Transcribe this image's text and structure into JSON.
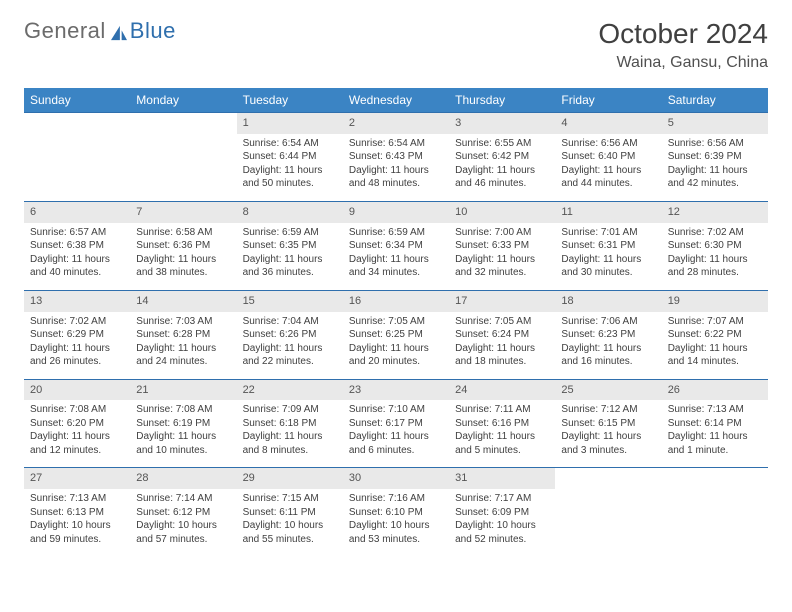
{
  "brand": {
    "part1": "General",
    "part2": "Blue"
  },
  "title": "October 2024",
  "location": "Waina, Gansu, China",
  "calendar": {
    "header_bg": "#3b84c4",
    "header_fg": "#ffffff",
    "rule_color": "#2f6fad",
    "daynum_bg": "#e9e9e9",
    "text_color": "#404040",
    "day_names": [
      "Sunday",
      "Monday",
      "Tuesday",
      "Wednesday",
      "Thursday",
      "Friday",
      "Saturday"
    ],
    "weeks": [
      [
        {
          "n": "",
          "sr": "",
          "ss": "",
          "dl": "",
          "empty": true
        },
        {
          "n": "",
          "sr": "",
          "ss": "",
          "dl": "",
          "empty": true
        },
        {
          "n": "1",
          "sr": "Sunrise: 6:54 AM",
          "ss": "Sunset: 6:44 PM",
          "dl": "Daylight: 11 hours and 50 minutes."
        },
        {
          "n": "2",
          "sr": "Sunrise: 6:54 AM",
          "ss": "Sunset: 6:43 PM",
          "dl": "Daylight: 11 hours and 48 minutes."
        },
        {
          "n": "3",
          "sr": "Sunrise: 6:55 AM",
          "ss": "Sunset: 6:42 PM",
          "dl": "Daylight: 11 hours and 46 minutes."
        },
        {
          "n": "4",
          "sr": "Sunrise: 6:56 AM",
          "ss": "Sunset: 6:40 PM",
          "dl": "Daylight: 11 hours and 44 minutes."
        },
        {
          "n": "5",
          "sr": "Sunrise: 6:56 AM",
          "ss": "Sunset: 6:39 PM",
          "dl": "Daylight: 11 hours and 42 minutes."
        }
      ],
      [
        {
          "n": "6",
          "sr": "Sunrise: 6:57 AM",
          "ss": "Sunset: 6:38 PM",
          "dl": "Daylight: 11 hours and 40 minutes."
        },
        {
          "n": "7",
          "sr": "Sunrise: 6:58 AM",
          "ss": "Sunset: 6:36 PM",
          "dl": "Daylight: 11 hours and 38 minutes."
        },
        {
          "n": "8",
          "sr": "Sunrise: 6:59 AM",
          "ss": "Sunset: 6:35 PM",
          "dl": "Daylight: 11 hours and 36 minutes."
        },
        {
          "n": "9",
          "sr": "Sunrise: 6:59 AM",
          "ss": "Sunset: 6:34 PM",
          "dl": "Daylight: 11 hours and 34 minutes."
        },
        {
          "n": "10",
          "sr": "Sunrise: 7:00 AM",
          "ss": "Sunset: 6:33 PM",
          "dl": "Daylight: 11 hours and 32 minutes."
        },
        {
          "n": "11",
          "sr": "Sunrise: 7:01 AM",
          "ss": "Sunset: 6:31 PM",
          "dl": "Daylight: 11 hours and 30 minutes."
        },
        {
          "n": "12",
          "sr": "Sunrise: 7:02 AM",
          "ss": "Sunset: 6:30 PM",
          "dl": "Daylight: 11 hours and 28 minutes."
        }
      ],
      [
        {
          "n": "13",
          "sr": "Sunrise: 7:02 AM",
          "ss": "Sunset: 6:29 PM",
          "dl": "Daylight: 11 hours and 26 minutes."
        },
        {
          "n": "14",
          "sr": "Sunrise: 7:03 AM",
          "ss": "Sunset: 6:28 PM",
          "dl": "Daylight: 11 hours and 24 minutes."
        },
        {
          "n": "15",
          "sr": "Sunrise: 7:04 AM",
          "ss": "Sunset: 6:26 PM",
          "dl": "Daylight: 11 hours and 22 minutes."
        },
        {
          "n": "16",
          "sr": "Sunrise: 7:05 AM",
          "ss": "Sunset: 6:25 PM",
          "dl": "Daylight: 11 hours and 20 minutes."
        },
        {
          "n": "17",
          "sr": "Sunrise: 7:05 AM",
          "ss": "Sunset: 6:24 PM",
          "dl": "Daylight: 11 hours and 18 minutes."
        },
        {
          "n": "18",
          "sr": "Sunrise: 7:06 AM",
          "ss": "Sunset: 6:23 PM",
          "dl": "Daylight: 11 hours and 16 minutes."
        },
        {
          "n": "19",
          "sr": "Sunrise: 7:07 AM",
          "ss": "Sunset: 6:22 PM",
          "dl": "Daylight: 11 hours and 14 minutes."
        }
      ],
      [
        {
          "n": "20",
          "sr": "Sunrise: 7:08 AM",
          "ss": "Sunset: 6:20 PM",
          "dl": "Daylight: 11 hours and 12 minutes."
        },
        {
          "n": "21",
          "sr": "Sunrise: 7:08 AM",
          "ss": "Sunset: 6:19 PM",
          "dl": "Daylight: 11 hours and 10 minutes."
        },
        {
          "n": "22",
          "sr": "Sunrise: 7:09 AM",
          "ss": "Sunset: 6:18 PM",
          "dl": "Daylight: 11 hours and 8 minutes."
        },
        {
          "n": "23",
          "sr": "Sunrise: 7:10 AM",
          "ss": "Sunset: 6:17 PM",
          "dl": "Daylight: 11 hours and 6 minutes."
        },
        {
          "n": "24",
          "sr": "Sunrise: 7:11 AM",
          "ss": "Sunset: 6:16 PM",
          "dl": "Daylight: 11 hours and 5 minutes."
        },
        {
          "n": "25",
          "sr": "Sunrise: 7:12 AM",
          "ss": "Sunset: 6:15 PM",
          "dl": "Daylight: 11 hours and 3 minutes."
        },
        {
          "n": "26",
          "sr": "Sunrise: 7:13 AM",
          "ss": "Sunset: 6:14 PM",
          "dl": "Daylight: 11 hours and 1 minute."
        }
      ],
      [
        {
          "n": "27",
          "sr": "Sunrise: 7:13 AM",
          "ss": "Sunset: 6:13 PM",
          "dl": "Daylight: 10 hours and 59 minutes."
        },
        {
          "n": "28",
          "sr": "Sunrise: 7:14 AM",
          "ss": "Sunset: 6:12 PM",
          "dl": "Daylight: 10 hours and 57 minutes."
        },
        {
          "n": "29",
          "sr": "Sunrise: 7:15 AM",
          "ss": "Sunset: 6:11 PM",
          "dl": "Daylight: 10 hours and 55 minutes."
        },
        {
          "n": "30",
          "sr": "Sunrise: 7:16 AM",
          "ss": "Sunset: 6:10 PM",
          "dl": "Daylight: 10 hours and 53 minutes."
        },
        {
          "n": "31",
          "sr": "Sunrise: 7:17 AM",
          "ss": "Sunset: 6:09 PM",
          "dl": "Daylight: 10 hours and 52 minutes."
        },
        {
          "n": "",
          "sr": "",
          "ss": "",
          "dl": "",
          "empty": true
        },
        {
          "n": "",
          "sr": "",
          "ss": "",
          "dl": "",
          "empty": true
        }
      ]
    ]
  }
}
